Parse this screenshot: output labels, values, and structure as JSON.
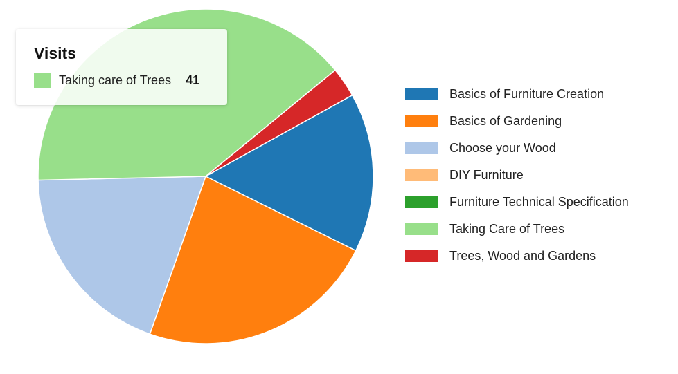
{
  "chart_data": {
    "type": "pie",
    "series_name": "Visits",
    "slices": [
      {
        "label": "Basics of Furniture Creation",
        "value": 16,
        "color": "#1f77b4"
      },
      {
        "label": "Basics of Gardening",
        "value": 24,
        "color": "#ff7f0e"
      },
      {
        "label": "Choose your Wood",
        "value": 20,
        "color": "#aec7e8"
      },
      {
        "label": "DIY Furniture",
        "value": 0,
        "color": "#ffbb78"
      },
      {
        "label": "Furniture Technical Specification",
        "value": 0,
        "color": "#2ca02c"
      },
      {
        "label": "Taking Care of Trees",
        "value": 41,
        "color": "#98df8a"
      },
      {
        "label": "Trees, Wood and Gardens",
        "value": 3,
        "color": "#d62728"
      }
    ],
    "legend_position": "right"
  },
  "tooltip": {
    "title": "Visits",
    "label": "Taking care of Trees",
    "value": "41",
    "color": "#98df8a"
  }
}
